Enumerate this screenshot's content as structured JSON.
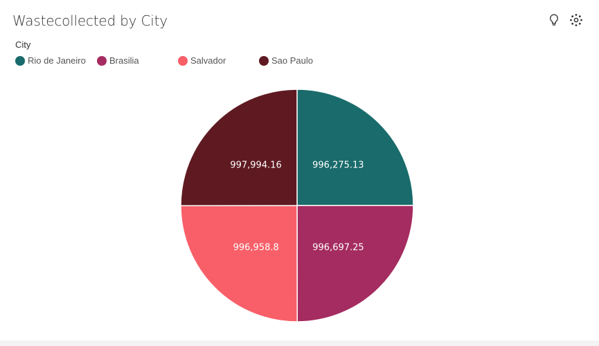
{
  "header": {
    "title": "Wastecollected by City",
    "icons": [
      "lightbulb-icon",
      "settings-icon"
    ]
  },
  "legend": {
    "title": "City",
    "placement": "top-left"
  },
  "colors": {
    "Rio de Janeiro": "#1a6b6b",
    "Brasilia": "#a52c60",
    "Salvador": "#f85f69",
    "Sao Paulo": "#5f1a21"
  },
  "chart_data": {
    "type": "pie",
    "title": "Wastecollected by City",
    "legend_title": "City",
    "categories": [
      "Rio de Janeiro",
      "Brasilia",
      "Salvador",
      "Sao Paulo"
    ],
    "values": [
      996275.13,
      996697.25,
      996958.8,
      997994.16
    ],
    "labels": [
      "996,275.13",
      "996,697.25",
      "996,958.8",
      "997,994.16"
    ]
  }
}
